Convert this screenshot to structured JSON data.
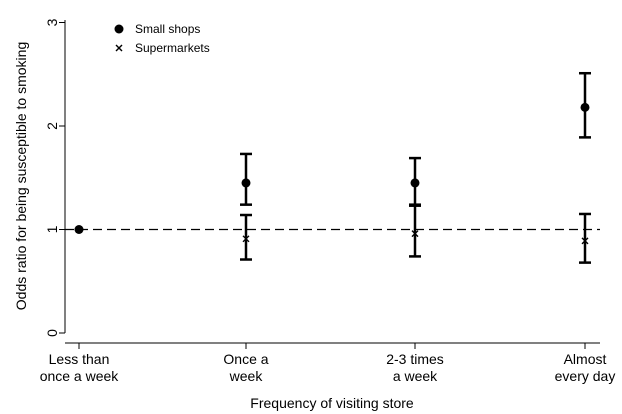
{
  "chart_data": {
    "type": "scatter",
    "xlabel": "Frequency of visiting store",
    "ylabel": "Odds ratio for being susceptible to smoking",
    "categories": [
      [
        "Less than",
        "once a week"
      ],
      [
        "Once a",
        "week"
      ],
      [
        "2-3 times",
        "a week"
      ],
      [
        "Almost",
        "every day"
      ]
    ],
    "y_ticks": [
      "0",
      "1",
      "2",
      "3"
    ],
    "ylim": [
      0,
      3
    ],
    "reference_line": 1,
    "legend_position": "top-left",
    "series": [
      {
        "name": "Small shops",
        "marker": "filled-circle",
        "values": [
          1.0,
          1.45,
          1.45,
          2.18
        ],
        "ci_low": [
          null,
          1.24,
          1.24,
          1.89
        ],
        "ci_high": [
          null,
          1.73,
          1.69,
          2.51
        ]
      },
      {
        "name": "Supermarkets",
        "marker": "x",
        "values": [
          1.0,
          0.91,
          0.96,
          0.89
        ],
        "ci_low": [
          null,
          0.71,
          0.74,
          0.68
        ],
        "ci_high": [
          null,
          1.14,
          1.23,
          1.15
        ]
      }
    ]
  }
}
